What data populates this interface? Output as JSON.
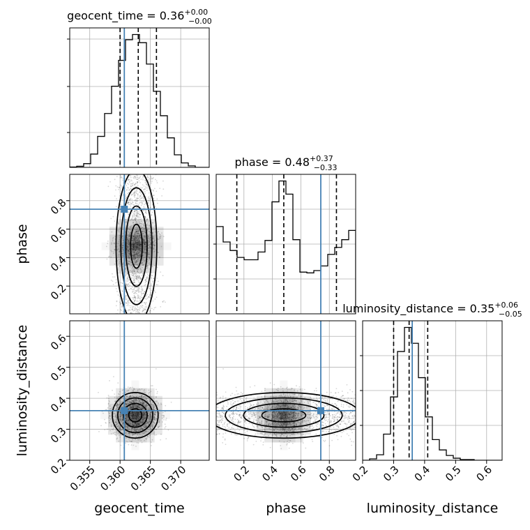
{
  "chart_data": {
    "type": "corner",
    "parameters": [
      "geocent_time",
      "phase",
      "luminosity_distance"
    ],
    "truth_color": "#4682b4",
    "truths": {
      "geocent_time": 0.3607,
      "phase": 0.74,
      "luminosity_distance": 0.36
    },
    "titles": [
      {
        "parameter": "geocent_time",
        "name": "geocent_time",
        "value": "0.36",
        "plus": "+0.00",
        "minus": "−0.00"
      },
      {
        "parameter": "phase",
        "name": "phase",
        "value": "0.48",
        "plus": "+0.37",
        "minus": "−0.33"
      },
      {
        "parameter": "luminosity_distance",
        "name": "luminosity_distance",
        "value": "0.35",
        "plus": "+0.06",
        "minus": "−0.05"
      }
    ],
    "ranges": {
      "geocent_time": [
        0.3517,
        0.3747
      ],
      "phase": [
        0.005,
        0.985
      ],
      "luminosity_distance": [
        0.2,
        0.65
      ]
    },
    "ticks": {
      "geocent_time": [
        0.355,
        0.36,
        0.365,
        0.37
      ],
      "phase_y": [
        0.2,
        0.4,
        0.6,
        0.8
      ],
      "phase_x": [
        0.2,
        0.4,
        0.6,
        0.8
      ],
      "luminosity_distance_y": [
        0.2,
        0.3,
        0.4,
        0.5,
        0.6
      ],
      "luminosity_distance_x": [
        0.2,
        0.3,
        0.4,
        0.5,
        0.6
      ]
    },
    "tick_labels": {
      "geocent_time": [
        "0.355",
        "0.360",
        "0.365",
        "0.370"
      ],
      "phase_y": [
        "0.2",
        "0.4",
        "0.6",
        "0.8"
      ],
      "phase_x": [
        "0.2",
        "0.4",
        "0.6",
        "0.8"
      ],
      "luminosity_distance_y": [
        "0.2",
        "0.3",
        "0.4",
        "0.5",
        "0.6"
      ],
      "luminosity_distance_x": [
        "0.2",
        "0.3",
        "0.4",
        "0.5",
        "0.6"
      ]
    },
    "quantiles": {
      "geocent_time": [
        0.36,
        0.363,
        0.366
      ],
      "phase": [
        0.15,
        0.48,
        0.85
      ],
      "luminosity_distance": [
        0.3,
        0.35,
        0.41
      ]
    },
    "histograms": {
      "geocent_time": {
        "edges": [
          0.3517,
          0.35285,
          0.354,
          0.35515,
          0.3563,
          0.35745,
          0.3586,
          0.35975,
          0.3609,
          0.36205,
          0.3632,
          0.36435,
          0.3655,
          0.36665,
          0.3678,
          0.36895,
          0.3701,
          0.37125,
          0.3724,
          0.37355,
          0.3747
        ],
        "counts": [
          0.5,
          1.5,
          5,
          18,
          42,
          73,
          110,
          145,
          173,
          180,
          169,
          140,
          103,
          70,
          40,
          17,
          6,
          2,
          0,
          0
        ]
      },
      "phase": {
        "edges": [
          0.005,
          0.054,
          0.103,
          0.152,
          0.201,
          0.25,
          0.299,
          0.348,
          0.397,
          0.446,
          0.495,
          0.544,
          0.593,
          0.642,
          0.691,
          0.74,
          0.789,
          0.838,
          0.887,
          0.936,
          0.985
        ],
        "counts": [
          113,
          93,
          82,
          73,
          70,
          70,
          80,
          95,
          145,
          172,
          155,
          96,
          54,
          53,
          56,
          62,
          77,
          86,
          96,
          108
        ]
      },
      "luminosity_distance": {
        "edges": [
          0.2,
          0.2225,
          0.245,
          0.2675,
          0.29,
          0.3125,
          0.335,
          0.3575,
          0.38,
          0.4025,
          0.425,
          0.4475,
          0.47,
          0.4925,
          0.515,
          0.5375,
          0.56,
          0.5825,
          0.605,
          0.6275,
          0.65
        ],
        "counts": [
          0,
          2,
          8,
          38,
          92,
          158,
          193,
          170,
          120,
          63,
          30,
          15,
          7,
          3,
          1,
          1,
          0,
          0,
          0,
          0
        ]
      }
    }
  }
}
